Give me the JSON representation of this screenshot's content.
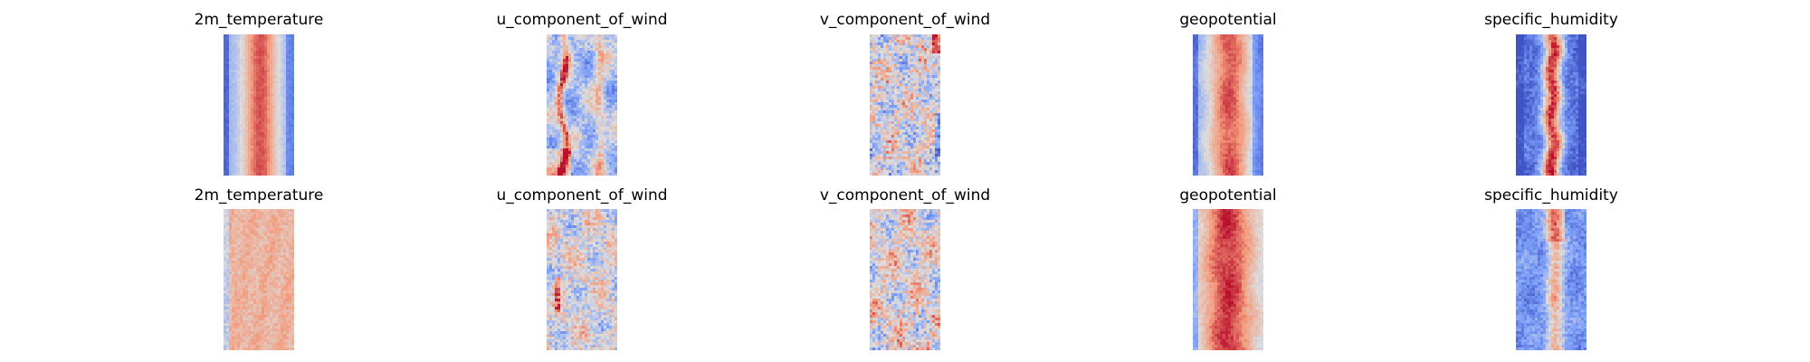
{
  "chart_data": [
    {
      "type": "heatmap",
      "rows": [
        {
          "panels": [
            {
              "title": "2m_temperature",
              "pattern": "temp_top"
            },
            {
              "title": "u_component_of_wind",
              "pattern": "u_top"
            },
            {
              "title": "v_component_of_wind",
              "pattern": "v_top"
            },
            {
              "title": "geopotential",
              "pattern": "geo_top"
            },
            {
              "title": "specific_humidity",
              "pattern": "hum_top"
            }
          ]
        },
        {
          "panels": [
            {
              "title": "2m_temperature",
              "pattern": "temp_bottom"
            },
            {
              "title": "u_component_of_wind",
              "pattern": "u_bottom"
            },
            {
              "title": "v_component_of_wind",
              "pattern": "v_bottom"
            },
            {
              "title": "geopotential",
              "pattern": "geo_bottom"
            },
            {
              "title": "specific_humidity",
              "pattern": "hum_bottom"
            }
          ]
        }
      ],
      "colormap": "coolwarm",
      "axes": "off",
      "grid": false,
      "legend": "none"
    }
  ]
}
